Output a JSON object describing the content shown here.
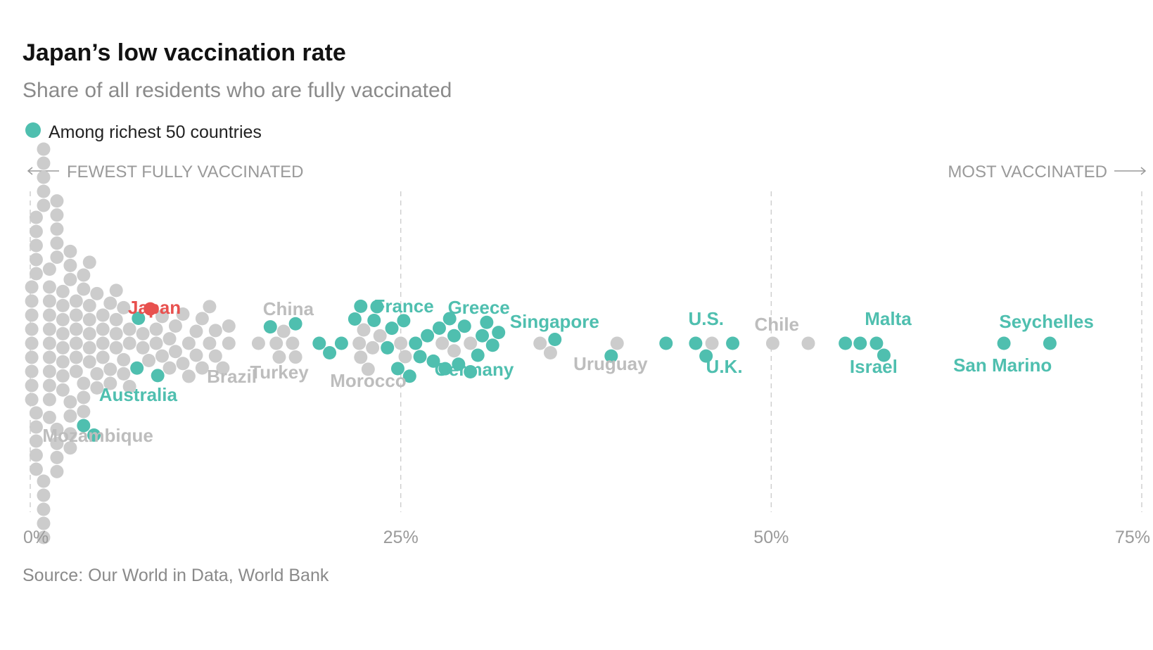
{
  "chart_data": {
    "type": "scatter",
    "title": "Japan’s low vaccination rate",
    "subtitle": "Share of all residents who are fully vaccinated",
    "source": "Source: Our World in Data, World Bank",
    "legend": {
      "label": "Among richest 50 countries",
      "placement": "top-left"
    },
    "direction_labels": {
      "left": "FEWEST FULLY VACCINATED",
      "right": "MOST VACCINATED"
    },
    "x_axis": {
      "min": 0,
      "max": 75,
      "ticks": [
        0,
        25,
        50,
        75
      ],
      "tick_labels": [
        "0%",
        "25%",
        "50%",
        "75%"
      ],
      "grid": "dashed"
    },
    "colors": {
      "rich": "#4fbfaf",
      "other": "#cccccc",
      "japan": "#e8514f",
      "label_other": "#bdbdbd"
    },
    "labeled_countries": [
      {
        "name": "Japan",
        "x": 8.1,
        "group": "japan"
      },
      {
        "name": "Australia",
        "x": 4.4,
        "group": "rich"
      },
      {
        "name": "Mozambique",
        "x": 1.3,
        "group": "other"
      },
      {
        "name": "Brazil",
        "x": 12.3,
        "group": "other"
      },
      {
        "name": "China",
        "x": 17.7,
        "group": "other"
      },
      {
        "name": "Turkey",
        "x": 16.9,
        "group": "other"
      },
      {
        "name": "Morocco",
        "x": 22.9,
        "group": "other"
      },
      {
        "name": "France",
        "x": 25.4,
        "group": "rich"
      },
      {
        "name": "Greece",
        "x": 29.6,
        "group": "rich"
      },
      {
        "name": "Germany",
        "x": 28.7,
        "group": "rich"
      },
      {
        "name": "Singapore",
        "x": 35.4,
        "group": "rich"
      },
      {
        "name": "Uruguay",
        "x": 39.5,
        "group": "other"
      },
      {
        "name": "U.S.",
        "x": 45.7,
        "group": "rich"
      },
      {
        "name": "U.K.",
        "x": 47.4,
        "group": "rich"
      },
      {
        "name": "Chile",
        "x": 50.1,
        "group": "other"
      },
      {
        "name": "Malta",
        "x": 57.6,
        "group": "rich"
      },
      {
        "name": "Israel",
        "x": 57.1,
        "group": "rich"
      },
      {
        "name": "Seychelles",
        "x": 68.8,
        "group": "rich"
      },
      {
        "name": "San Marino",
        "x": 65.7,
        "group": "rich"
      }
    ],
    "points": {
      "rich": [
        3.6,
        4.3,
        7.3,
        7.2,
        8.6,
        16.2,
        17.9,
        19.5,
        20.2,
        21.0,
        21.9,
        22.3,
        23.2,
        23.4,
        24.1,
        24.4,
        24.8,
        25.2,
        25.6,
        26.0,
        26.3,
        26.8,
        27.2,
        27.6,
        28.0,
        28.3,
        28.6,
        28.9,
        29.3,
        29.7,
        30.2,
        30.5,
        30.8,
        31.2,
        31.6,
        35.4,
        39.2,
        42.9,
        44.9,
        45.6,
        47.4,
        55.0,
        56.0,
        57.1,
        57.6,
        65.7,
        68.8
      ],
      "other": [
        0.1,
        0.1,
        0.1,
        0.1,
        0.1,
        0.1,
        0.1,
        0.1,
        0.1,
        0.4,
        0.4,
        0.4,
        0.4,
        0.4,
        0.4,
        0.4,
        0.4,
        0.4,
        0.4,
        0.9,
        0.9,
        0.9,
        0.9,
        0.9,
        0.9,
        0.9,
        0.9,
        0.9,
        0.9,
        1.3,
        1.3,
        1.3,
        1.3,
        1.3,
        1.3,
        1.3,
        1.3,
        1.3,
        1.3,
        1.3,
        1.8,
        1.8,
        1.8,
        1.8,
        1.8,
        1.8,
        1.8,
        1.8,
        1.8,
        2.2,
        2.2,
        2.2,
        2.2,
        2.2,
        2.2,
        2.2,
        2.2,
        2.7,
        2.7,
        2.7,
        2.7,
        2.7,
        2.7,
        2.7,
        3.1,
        3.1,
        3.1,
        3.1,
        3.1,
        3.1,
        3.6,
        3.6,
        3.6,
        3.6,
        3.6,
        4.0,
        4.0,
        4.0,
        4.0,
        4.0,
        4.0,
        4.5,
        4.5,
        4.5,
        4.9,
        4.9,
        4.9,
        4.9,
        5.4,
        5.4,
        5.4,
        5.8,
        5.8,
        5.8,
        5.8,
        6.3,
        6.3,
        6.3,
        6.7,
        6.7,
        6.7,
        7.6,
        7.6,
        8.0,
        8.5,
        8.5,
        8.9,
        8.9,
        9.4,
        9.4,
        9.8,
        9.8,
        10.3,
        10.3,
        10.7,
        10.7,
        11.2,
        11.2,
        11.6,
        11.6,
        12.1,
        12.1,
        12.5,
        12.5,
        13.0,
        13.4,
        13.4,
        15.4,
        16.6,
        16.8,
        17.1,
        17.7,
        17.9,
        22.2,
        22.3,
        22.5,
        22.8,
        23.1,
        23.6,
        25.0,
        25.3,
        27.8,
        28.6,
        29.7,
        34.4,
        35.1,
        39.6,
        46.0,
        50.1,
        52.5
      ]
    }
  }
}
